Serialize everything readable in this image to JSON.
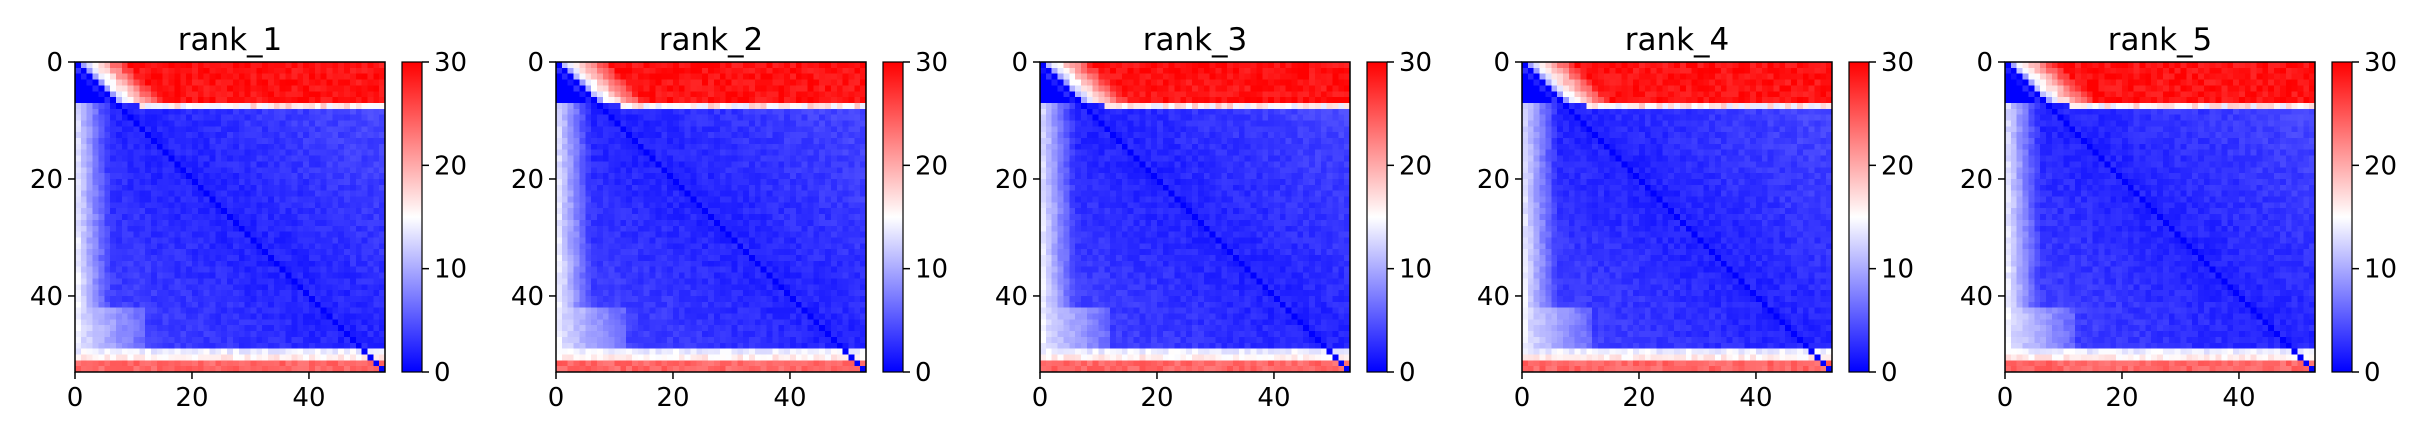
{
  "chart_data": [
    {
      "type": "heatmap",
      "title": "rank_1",
      "size": 53,
      "x_ticks": [
        0,
        20,
        40
      ],
      "y_ticks": [
        0,
        20,
        40
      ],
      "colorbar": {
        "min": 0,
        "max": 30,
        "ticks": [
          0,
          10,
          20,
          30
        ],
        "colormap": "bwr",
        "low_color": "#0000ff",
        "mid_color": "#ffffff",
        "high_color": "#ff0000"
      },
      "pattern": {
        "top_band_rows": 7,
        "bottom_band_rows": 2,
        "top_value": 30,
        "bottom_value": 24,
        "interior_value": 2,
        "left_edge_value": 12,
        "diagonal_value": 0
      }
    },
    {
      "type": "heatmap",
      "title": "rank_2",
      "size": 53,
      "x_ticks": [
        0,
        20,
        40
      ],
      "y_ticks": [
        0,
        20,
        40
      ],
      "colorbar": {
        "min": 0,
        "max": 30,
        "ticks": [
          0,
          10,
          20,
          30
        ],
        "colormap": "bwr",
        "low_color": "#0000ff",
        "mid_color": "#ffffff",
        "high_color": "#ff0000"
      },
      "pattern": {
        "top_band_rows": 7,
        "bottom_band_rows": 2,
        "top_value": 30,
        "bottom_value": 24,
        "interior_value": 2,
        "left_edge_value": 12,
        "diagonal_value": 0
      }
    },
    {
      "type": "heatmap",
      "title": "rank_3",
      "size": 53,
      "x_ticks": [
        0,
        20,
        40
      ],
      "y_ticks": [
        0,
        20,
        40
      ],
      "colorbar": {
        "min": 0,
        "max": 30,
        "ticks": [
          0,
          10,
          20,
          30
        ],
        "colormap": "bwr",
        "low_color": "#0000ff",
        "mid_color": "#ffffff",
        "high_color": "#ff0000"
      },
      "pattern": {
        "top_band_rows": 7,
        "bottom_band_rows": 2,
        "top_value": 30,
        "bottom_value": 24,
        "interior_value": 2,
        "left_edge_value": 12,
        "diagonal_value": 0
      }
    },
    {
      "type": "heatmap",
      "title": "rank_4",
      "size": 53,
      "x_ticks": [
        0,
        20,
        40
      ],
      "y_ticks": [
        0,
        20,
        40
      ],
      "colorbar": {
        "min": 0,
        "max": 30,
        "ticks": [
          0,
          10,
          20,
          30
        ],
        "colormap": "bwr",
        "low_color": "#0000ff",
        "mid_color": "#ffffff",
        "high_color": "#ff0000"
      },
      "pattern": {
        "top_band_rows": 7,
        "bottom_band_rows": 2,
        "top_value": 30,
        "bottom_value": 24,
        "interior_value": 2,
        "left_edge_value": 12,
        "diagonal_value": 0
      }
    },
    {
      "type": "heatmap",
      "title": "rank_5",
      "size": 53,
      "x_ticks": [
        0,
        20,
        40
      ],
      "y_ticks": [
        0,
        20,
        40
      ],
      "colorbar": {
        "min": 0,
        "max": 30,
        "ticks": [
          0,
          10,
          20,
          30
        ],
        "colormap": "bwr",
        "low_color": "#0000ff",
        "mid_color": "#ffffff",
        "high_color": "#ff0000"
      },
      "pattern": {
        "top_band_rows": 7,
        "bottom_band_rows": 2,
        "top_value": 30,
        "bottom_value": 24,
        "interior_value": 2,
        "left_edge_value": 12,
        "diagonal_value": 0
      }
    }
  ]
}
